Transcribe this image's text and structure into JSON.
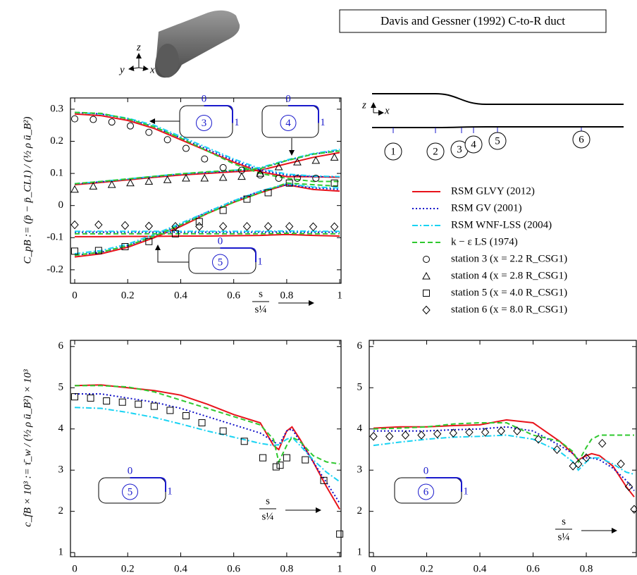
{
  "title": "Davis and Gessner (1992) C-to-R duct",
  "geometry": {
    "axes": [
      "z",
      "y",
      "x"
    ]
  },
  "schematic": {
    "axes": [
      "z",
      "x"
    ],
    "stations": [
      "1",
      "2",
      "3",
      "4",
      "5",
      "6"
    ]
  },
  "chart_data": [
    {
      "type": "line",
      "ylabel": "C_pB := (p̄ − p̄_CL1) / (½ ρ ū_B²)",
      "xlabel": {
        "numerator": "s",
        "denominator": "s¼"
      },
      "xlim": [
        -0.016,
        1.005
      ],
      "ylim": [
        -0.242,
        0.335
      ],
      "xticks": [
        0,
        0.2,
        0.4,
        0.6,
        0.8,
        1
      ],
      "yticks": [
        -0.2,
        -0.1,
        0,
        0.1,
        0.2,
        0.3
      ],
      "x": [
        0,
        0.1,
        0.2,
        0.3,
        0.4,
        0.5,
        0.6,
        0.7,
        0.8,
        0.9,
        1
      ],
      "insets": [
        {
          "station": "3",
          "start": "0",
          "end": "1"
        },
        {
          "station": "4",
          "start": "0",
          "end": "1"
        },
        {
          "station": "5",
          "start": "0",
          "end": "1"
        }
      ],
      "series": [
        {
          "name": "RSM GLVY (2012)",
          "color": "#e8131b",
          "dash": "solid",
          "values": [
            [
              0.285,
              0.28,
              0.265,
              0.24,
              0.205,
              0.17,
              0.135,
              0.105,
              0.09,
              0.09,
              0.088
            ],
            [
              0.065,
              0.072,
              0.08,
              0.088,
              0.095,
              0.1,
              0.105,
              0.11,
              0.13,
              0.15,
              0.165
            ],
            [
              -0.16,
              -0.15,
              -0.13,
              -0.1,
              -0.065,
              -0.025,
              0.01,
              0.04,
              0.065,
              0.05,
              0.045
            ],
            [
              -0.097,
              -0.097,
              -0.096,
              -0.096,
              -0.095,
              -0.095,
              -0.094,
              -0.093,
              -0.09,
              -0.093,
              -0.095
            ]
          ]
        },
        {
          "name": "RSM GV (2001)",
          "color": "#1010c8",
          "dash": "dotted",
          "values": [
            [
              0.29,
              0.285,
              0.27,
              0.245,
              0.21,
              0.175,
              0.14,
              0.11,
              0.095,
              0.09,
              0.09
            ],
            [
              0.067,
              0.074,
              0.082,
              0.09,
              0.098,
              0.103,
              0.108,
              0.115,
              0.14,
              0.16,
              0.172
            ],
            [
              -0.155,
              -0.145,
              -0.125,
              -0.095,
              -0.06,
              -0.02,
              0.015,
              0.045,
              0.065,
              0.055,
              0.05
            ],
            [
              -0.083,
              -0.083,
              -0.083,
              -0.083,
              -0.083,
              -0.083,
              -0.083,
              -0.083,
              -0.082,
              -0.083,
              -0.083
            ]
          ]
        },
        {
          "name": "RSM WNF-LSS (2004)",
          "color": "#19d3f3",
          "dash": "dashdot",
          "values": [
            [
              0.29,
              0.285,
              0.272,
              0.25,
              0.215,
              0.18,
              0.145,
              0.115,
              0.098,
              0.092,
              0.09
            ],
            [
              0.068,
              0.075,
              0.083,
              0.091,
              0.099,
              0.104,
              0.11,
              0.118,
              0.142,
              0.162,
              0.175
            ],
            [
              -0.15,
              -0.14,
              -0.12,
              -0.09,
              -0.055,
              -0.02,
              0.015,
              0.045,
              0.068,
              0.058,
              0.055
            ],
            [
              -0.08,
              -0.08,
              -0.08,
              -0.08,
              -0.08,
              -0.08,
              -0.08,
              -0.08,
              -0.079,
              -0.08,
              -0.08
            ]
          ]
        },
        {
          "name": "k − ε LS (1974)",
          "color": "#2ec82e",
          "dash": "dashed",
          "values": [
            [
              0.29,
              0.287,
              0.27,
              0.245,
              0.21,
              0.17,
              0.13,
              0.1,
              0.085,
              0.075,
              0.075
            ],
            [
              0.068,
              0.075,
              0.083,
              0.091,
              0.099,
              0.105,
              0.11,
              0.115,
              0.14,
              0.16,
              0.17
            ],
            [
              -0.155,
              -0.145,
              -0.125,
              -0.095,
              -0.06,
              -0.025,
              0.01,
              0.04,
              0.07,
              0.065,
              0.06
            ],
            [
              -0.088,
              -0.088,
              -0.088,
              -0.088,
              -0.088,
              -0.088,
              -0.088,
              -0.088,
              -0.086,
              -0.088,
              -0.088
            ]
          ]
        },
        {
          "name": "station 3 (x = 2.2 R_CSG1)",
          "marker": "circle",
          "x": [
            0,
            0.07,
            0.14,
            0.21,
            0.28,
            0.35,
            0.42,
            0.49,
            0.56,
            0.63,
            0.7,
            0.77,
            0.84,
            0.91
          ],
          "values": [
            0.27,
            0.268,
            0.26,
            0.248,
            0.228,
            0.205,
            0.178,
            0.145,
            0.118,
            0.11,
            0.095,
            0.085,
            0.085,
            0.085
          ]
        },
        {
          "name": "station 4 (x = 2.8 R_CSG1)",
          "marker": "triangle",
          "x": [
            0,
            0.07,
            0.14,
            0.21,
            0.28,
            0.35,
            0.42,
            0.49,
            0.56,
            0.63,
            0.7,
            0.77,
            0.84,
            0.91,
            0.98
          ],
          "values": [
            0.05,
            0.06,
            0.065,
            0.07,
            0.075,
            0.08,
            0.085,
            0.085,
            0.087,
            0.09,
            0.1,
            0.12,
            0.135,
            0.14,
            0.15
          ]
        },
        {
          "name": "station 5 (x = 4.0 R_CSG1)",
          "marker": "square",
          "x": [
            0,
            0.09,
            0.19,
            0.28,
            0.38,
            0.47,
            0.56,
            0.65,
            0.73,
            0.81,
            0.98
          ],
          "values": [
            -0.142,
            -0.14,
            -0.128,
            -0.112,
            -0.088,
            -0.05,
            -0.015,
            0.02,
            0.04,
            0.07,
            0.07
          ]
        },
        {
          "name": "station 6 (x = 8.0 R_CSG1)",
          "marker": "diamond",
          "x": [
            0,
            0.09,
            0.19,
            0.28,
            0.38,
            0.47,
            0.56,
            0.65,
            0.73,
            0.81,
            0.9,
            0.98
          ],
          "values": [
            -0.06,
            -0.06,
            -0.062,
            -0.064,
            -0.065,
            -0.065,
            -0.065,
            -0.065,
            -0.065,
            -0.065,
            -0.066,
            -0.066
          ]
        }
      ]
    },
    {
      "type": "line",
      "ylabel": "c_fB × 10³ := τ̄_w / (½ ρ ū_B²) × 10³",
      "xlabel": {
        "numerator": "s",
        "denominator": "s¼"
      },
      "xlim": [
        -0.016,
        1.005
      ],
      "ylim": [
        0.9,
        6.15
      ],
      "xticks": [
        0,
        0.2,
        0.4,
        0.6,
        0.8,
        1
      ],
      "yticks": [
        1,
        2,
        3,
        4,
        5,
        6
      ],
      "x": [
        0,
        0.1,
        0.2,
        0.3,
        0.4,
        0.5,
        0.6,
        0.7,
        0.75,
        0.77,
        0.8,
        0.82,
        0.85,
        0.9,
        0.95,
        1
      ],
      "insets": [
        {
          "station": "5",
          "start": "0",
          "end": "1"
        }
      ],
      "series": [
        {
          "color": "#e8131b",
          "dash": "solid",
          "values": [
            5.05,
            5.07,
            5.0,
            4.93,
            4.82,
            4.6,
            4.35,
            4.15,
            3.6,
            3.5,
            3.95,
            4.05,
            3.75,
            3.2,
            2.6,
            2.05
          ]
        },
        {
          "color": "#1010c8",
          "dash": "dotted",
          "values": [
            4.85,
            4.85,
            4.75,
            4.65,
            4.5,
            4.3,
            4.1,
            3.9,
            3.7,
            3.6,
            3.95,
            4.0,
            3.7,
            3.2,
            2.7,
            2.2
          ]
        },
        {
          "color": "#19d3f3",
          "dash": "dashdot",
          "values": [
            4.52,
            4.5,
            4.4,
            4.28,
            4.12,
            3.95,
            3.8,
            3.65,
            3.6,
            3.62,
            3.75,
            3.8,
            3.6,
            3.25,
            2.95,
            2.72
          ]
        },
        {
          "color": "#2ec82e",
          "dash": "dashed",
          "values": [
            5.05,
            5.05,
            5.02,
            4.9,
            4.7,
            4.5,
            4.3,
            4.1,
            3.75,
            3.2,
            3.6,
            3.8,
            3.7,
            3.35,
            3.2,
            3.15
          ]
        },
        {
          "marker": "square",
          "x": [
            0,
            0.06,
            0.12,
            0.18,
            0.24,
            0.3,
            0.36,
            0.42,
            0.48,
            0.56,
            0.64,
            0.71,
            0.76,
            0.775,
            0.8,
            0.87,
            0.94,
            1.0
          ],
          "values": [
            4.78,
            4.75,
            4.68,
            4.65,
            4.6,
            4.55,
            4.45,
            4.32,
            4.15,
            3.95,
            3.7,
            3.3,
            3.08,
            3.12,
            3.3,
            3.25,
            2.75,
            1.45
          ]
        }
      ]
    },
    {
      "type": "line",
      "xlabel": {
        "numerator": "s",
        "denominator": "s¼"
      },
      "xlim": [
        -0.016,
        0.988
      ],
      "ylim": [
        0.9,
        6.15
      ],
      "xticks": [
        0,
        0.2,
        0.4,
        0.6,
        0.8
      ],
      "yticks": [
        1,
        2,
        3,
        4,
        5,
        6
      ],
      "x": [
        0,
        0.1,
        0.2,
        0.3,
        0.4,
        0.5,
        0.6,
        0.7,
        0.75,
        0.77,
        0.8,
        0.82,
        0.85,
        0.9,
        0.95,
        0.98
      ],
      "insets": [
        {
          "station": "6",
          "start": "0",
          "end": "1"
        }
      ],
      "series": [
        {
          "color": "#e8131b",
          "dash": "solid",
          "values": [
            4.02,
            4.05,
            4.05,
            4.08,
            4.1,
            4.22,
            4.15,
            3.7,
            3.4,
            3.25,
            3.35,
            3.4,
            3.35,
            3.1,
            2.6,
            2.35
          ]
        },
        {
          "color": "#1010c8",
          "dash": "dotted",
          "values": [
            3.95,
            3.95,
            3.95,
            3.98,
            4.0,
            4.05,
            3.95,
            3.6,
            3.4,
            3.25,
            3.3,
            3.3,
            3.25,
            3.05,
            2.75,
            2.5
          ]
        },
        {
          "color": "#19d3f3",
          "dash": "dashdot",
          "values": [
            3.6,
            3.68,
            3.75,
            3.8,
            3.82,
            3.85,
            3.75,
            3.45,
            3.2,
            3.0,
            3.2,
            3.3,
            3.3,
            3.15,
            2.95,
            2.9
          ]
        },
        {
          "color": "#2ec82e",
          "dash": "dashed",
          "values": [
            4.0,
            4.02,
            4.05,
            4.12,
            4.15,
            4.15,
            3.85,
            3.7,
            3.45,
            3.2,
            3.55,
            3.75,
            3.85,
            3.85,
            3.85,
            3.85
          ]
        },
        {
          "marker": "diamond",
          "x": [
            0,
            0.06,
            0.12,
            0.18,
            0.24,
            0.3,
            0.36,
            0.42,
            0.48,
            0.54,
            0.62,
            0.69,
            0.75,
            0.77,
            0.8,
            0.86,
            0.93,
            0.96,
            0.98
          ],
          "values": [
            3.82,
            3.82,
            3.85,
            3.85,
            3.88,
            3.9,
            3.92,
            3.92,
            3.95,
            3.95,
            3.75,
            3.5,
            3.1,
            3.15,
            3.3,
            3.65,
            3.15,
            2.6,
            2.05
          ]
        }
      ]
    }
  ]
}
